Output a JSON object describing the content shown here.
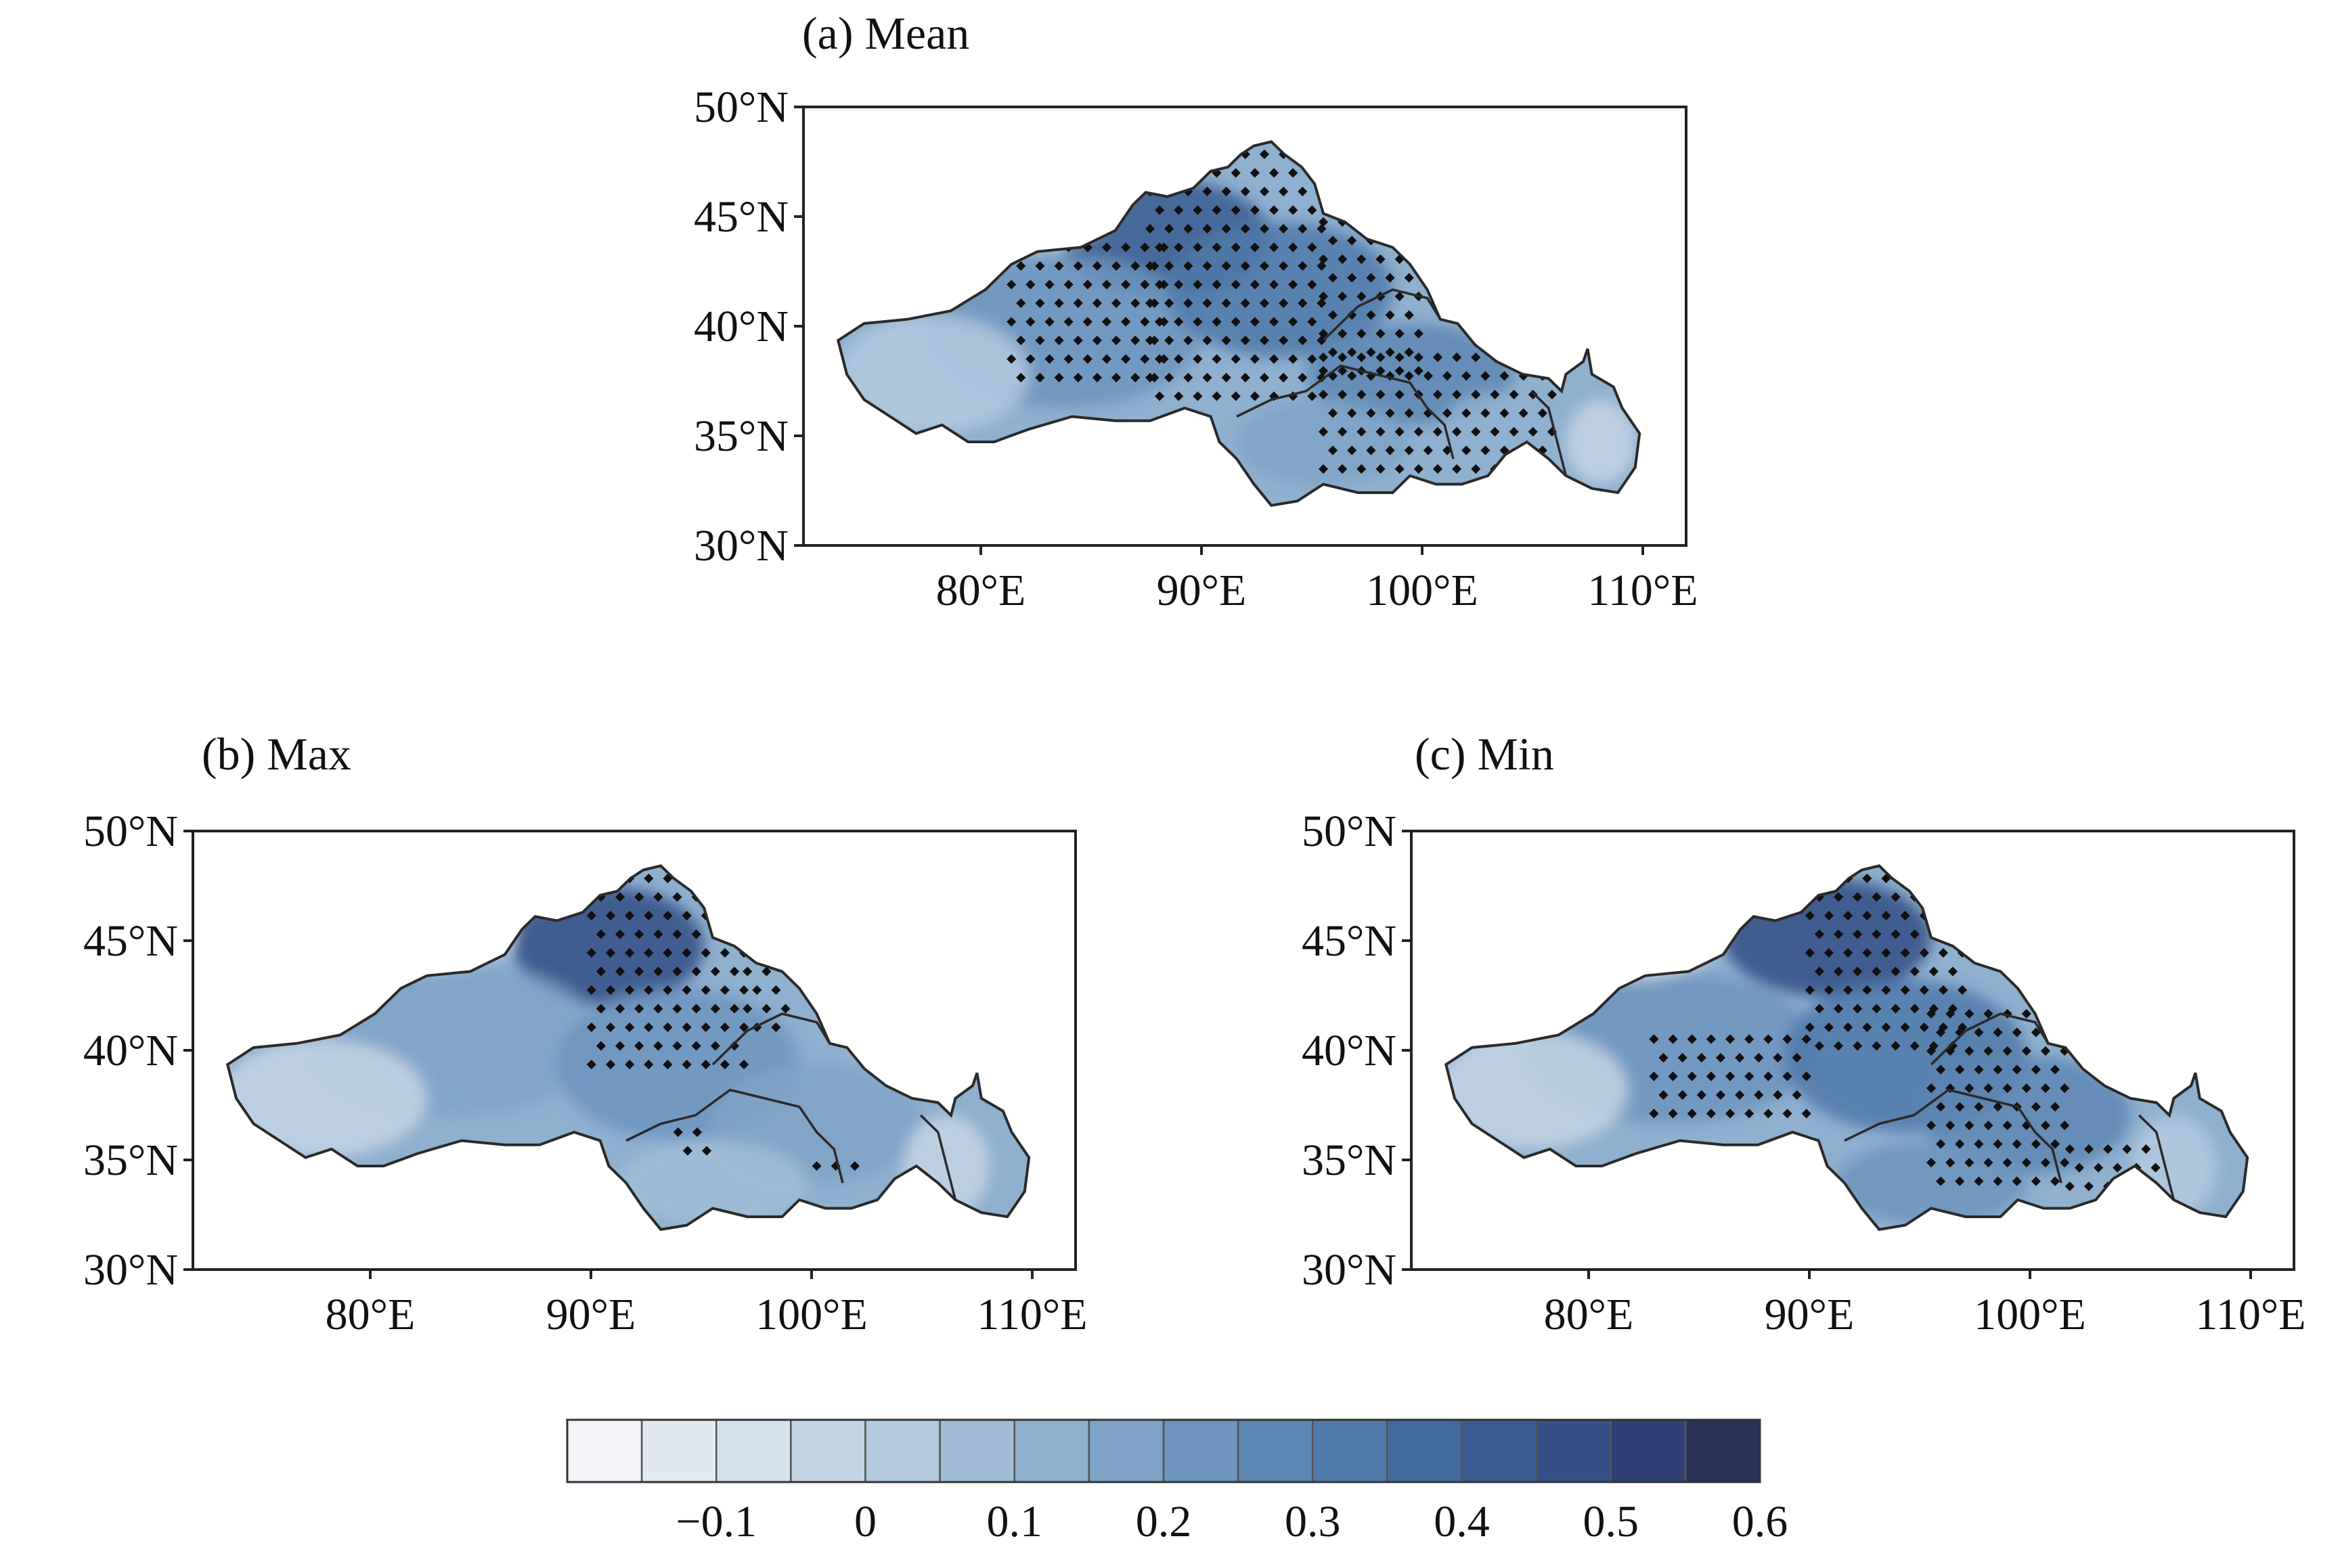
{
  "panels": [
    {
      "title": "(a) Mean"
    },
    {
      "title": "(b) Max"
    },
    {
      "title": "(c) Min"
    }
  ],
  "axes": {
    "lat_labels": [
      "50°N",
      "45°N",
      "40°N",
      "35°N",
      "30°N"
    ],
    "lon_labels": [
      "80°E",
      "90°E",
      "100°E",
      "110°E"
    ]
  },
  "colorbar": {
    "labels": [
      "−0.1",
      "0",
      "0.1",
      "0.2",
      "0.3",
      "0.4",
      "0.5",
      "0.6"
    ],
    "colors": [
      "#f3f4f8",
      "#e1e8f1",
      "#d4e0ec",
      "#c3d4e5",
      "#b3c9df",
      "#a1bdd6",
      "#8fb0cf",
      "#7ea3c6",
      "#6d95bd",
      "#5d87b3",
      "#4f79a8",
      "#436a9c",
      "#3a5d91",
      "#344f85",
      "#2e4073",
      "#2b3259"
    ]
  },
  "legend_icons": [
    "stippling-dot-icon"
  ]
}
